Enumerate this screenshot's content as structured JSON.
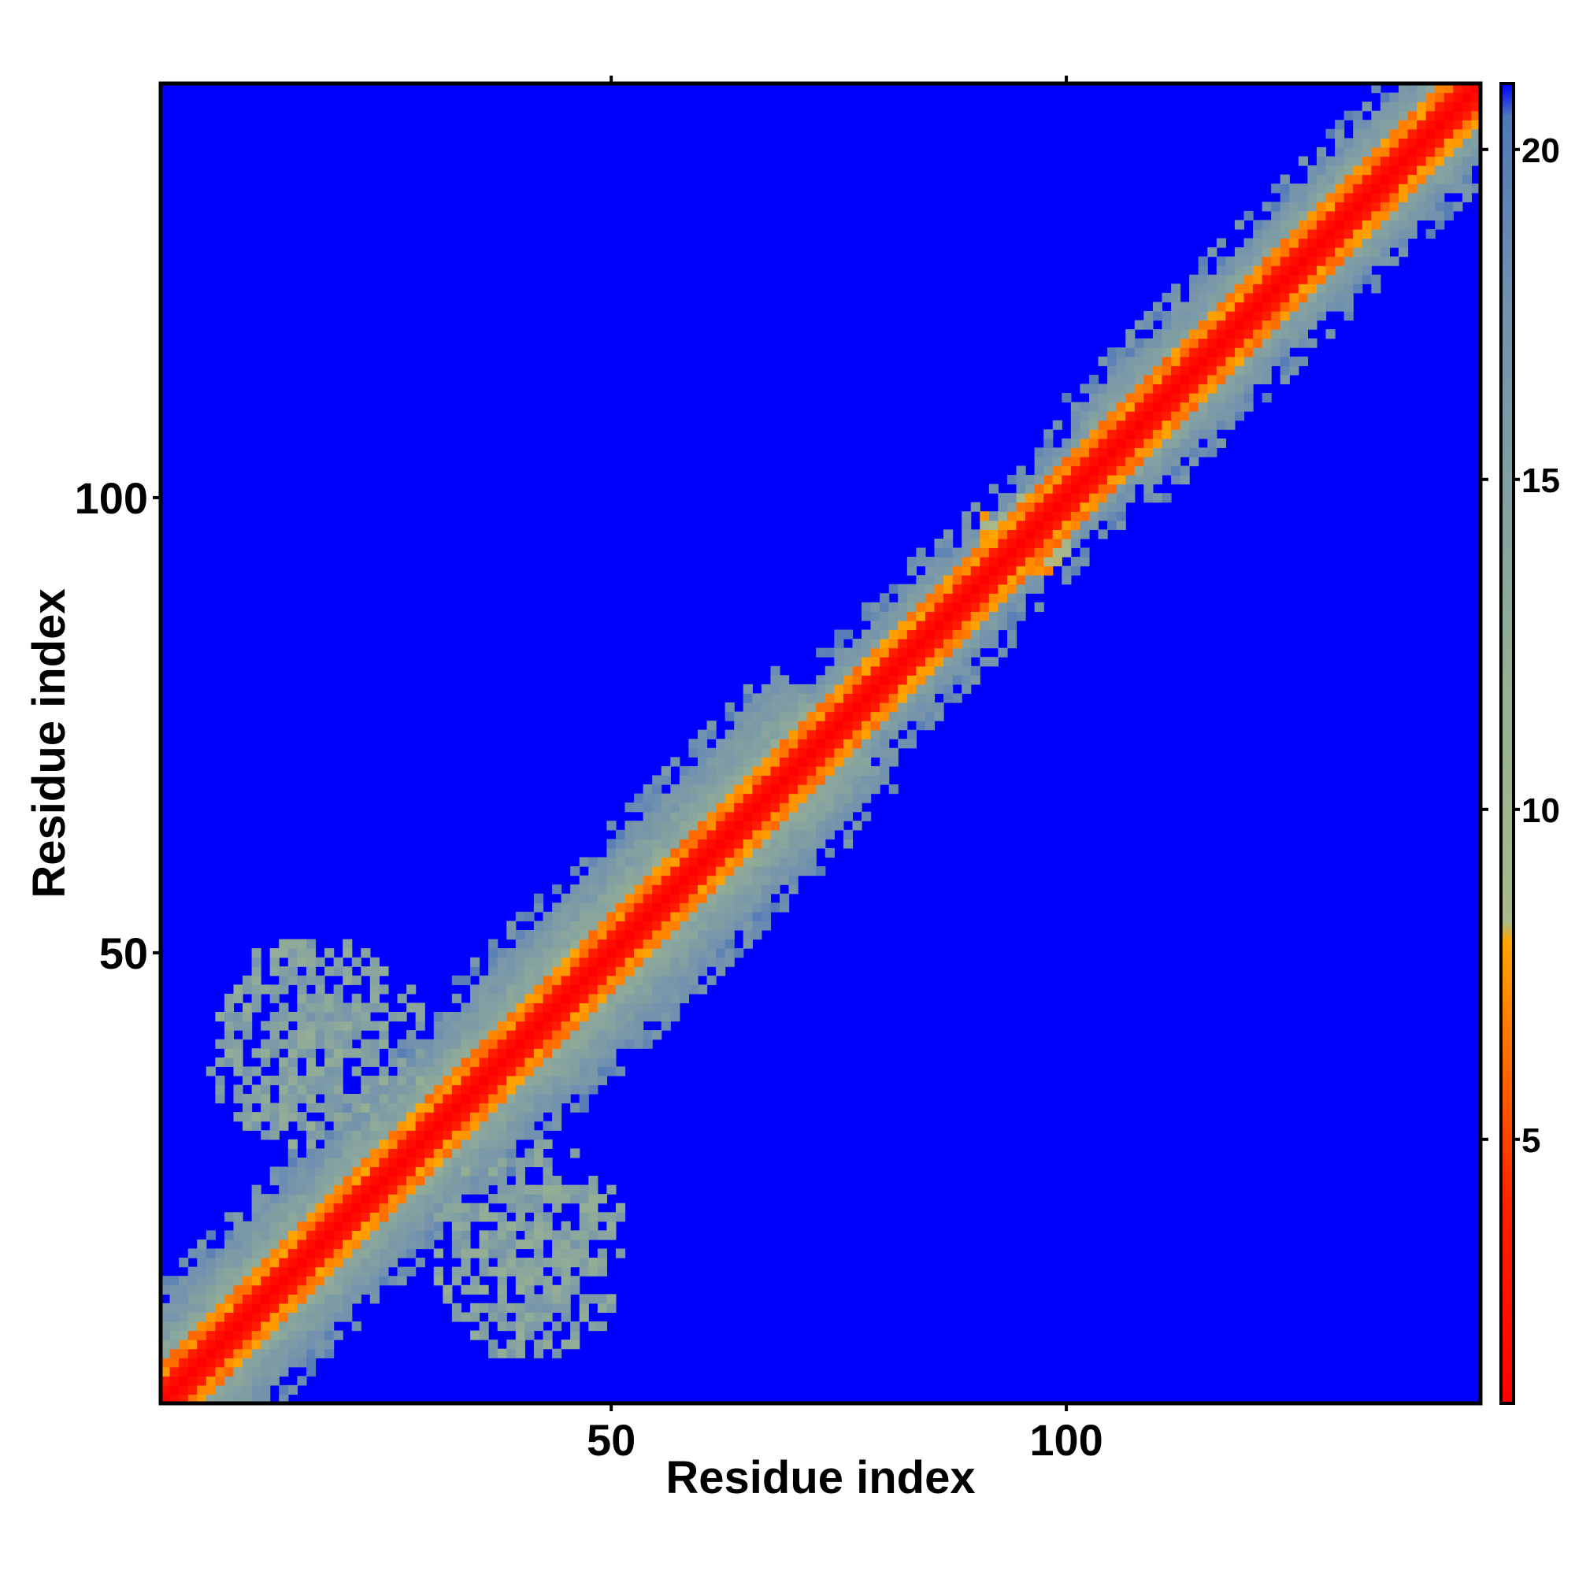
{
  "chart_data": {
    "type": "heatmap",
    "title": "",
    "xlabel": "Residue index",
    "ylabel": "Residue index",
    "xlim": [
      1,
      145
    ],
    "ylim": [
      1,
      145
    ],
    "x_ticks": [
      50,
      100
    ],
    "y_ticks": [
      50,
      100
    ],
    "x_tick_labels": [
      "50",
      "100"
    ],
    "y_tick_labels": [
      "50",
      "100"
    ],
    "colorbar": {
      "range": [
        1,
        21
      ],
      "ticks": [
        5,
        10,
        15,
        20
      ],
      "tick_labels": [
        "5",
        "10",
        "15",
        "20"
      ],
      "stops": [
        {
          "value": 1,
          "color": "#ff0000"
        },
        {
          "value": 4,
          "color": "#ff2200"
        },
        {
          "value": 6,
          "color": "#ff6600"
        },
        {
          "value": 8,
          "color": "#ffa500"
        },
        {
          "value": 8.3,
          "color": "#a9b98a"
        },
        {
          "value": 12,
          "color": "#95af95"
        },
        {
          "value": 18,
          "color": "#6f8fb0"
        },
        {
          "value": 20.5,
          "color": "#4f78b8"
        },
        {
          "value": 21,
          "color": "#0000ff"
        }
      ]
    },
    "background_value": 21,
    "diagonal_band": {
      "description_values": {
        "diagonal": 1,
        "near_1": 2,
        "near_2": 3,
        "band_mid": 7,
        "band_outer": 11,
        "band_edge": 16
      }
    },
    "contact_regions": [
      {
        "x_range": [
          5,
          30
        ],
        "y_range": [
          28,
          52
        ],
        "value": 12
      },
      {
        "x_range": [
          30,
          52
        ],
        "y_range": [
          5,
          30
        ],
        "value": 12
      },
      {
        "x_range": [
          90,
          101
        ],
        "y_range": [
          90,
          101
        ],
        "value": 6
      }
    ]
  }
}
